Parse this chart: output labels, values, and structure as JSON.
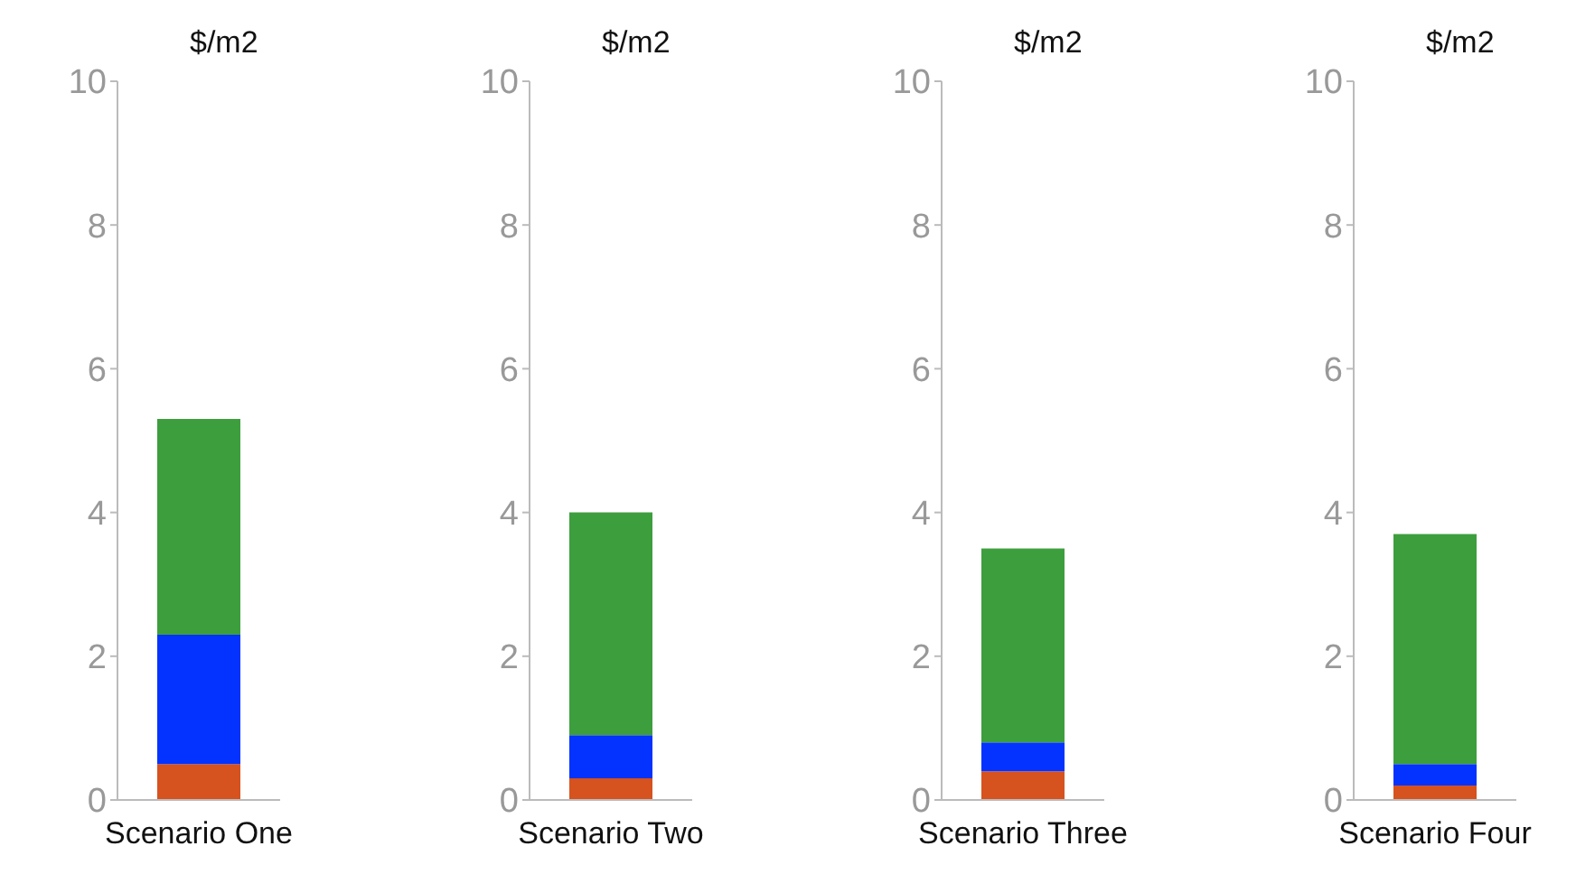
{
  "chart_data": [
    {
      "type": "bar",
      "stacked": true,
      "categories": [
        "Scenario One"
      ],
      "ylabel": "$/m2",
      "ylim": [
        0,
        10
      ],
      "yticks": [
        0,
        2,
        4,
        6,
        8,
        10
      ],
      "series": [
        {
          "color": "#d6521e",
          "values": [
            0.5
          ]
        },
        {
          "color": "#0433ff",
          "values": [
            1.8
          ]
        },
        {
          "color": "#3d9e3d",
          "values": [
            3.0
          ]
        }
      ]
    },
    {
      "type": "bar",
      "stacked": true,
      "categories": [
        "Scenario Two"
      ],
      "ylabel": "$/m2",
      "ylim": [
        0,
        10
      ],
      "yticks": [
        0,
        2,
        4,
        6,
        8,
        10
      ],
      "series": [
        {
          "color": "#d6521e",
          "values": [
            0.3
          ]
        },
        {
          "color": "#0433ff",
          "values": [
            0.6
          ]
        },
        {
          "color": "#3d9e3d",
          "values": [
            3.1
          ]
        }
      ]
    },
    {
      "type": "bar",
      "stacked": true,
      "categories": [
        "Scenario Three"
      ],
      "ylabel": "$/m2",
      "ylim": [
        0,
        10
      ],
      "yticks": [
        0,
        2,
        4,
        6,
        8,
        10
      ],
      "series": [
        {
          "color": "#d6521e",
          "values": [
            0.4
          ]
        },
        {
          "color": "#0433ff",
          "values": [
            0.4
          ]
        },
        {
          "color": "#3d9e3d",
          "values": [
            2.7
          ]
        }
      ]
    },
    {
      "type": "bar",
      "stacked": true,
      "categories": [
        "Scenario Four"
      ],
      "ylabel": "$/m2",
      "ylim": [
        0,
        10
      ],
      "yticks": [
        0,
        2,
        4,
        6,
        8,
        10
      ],
      "series": [
        {
          "color": "#d6521e",
          "values": [
            0.2
          ]
        },
        {
          "color": "#0433ff",
          "values": [
            0.3
          ]
        },
        {
          "color": "#3d9e3d",
          "values": [
            3.2
          ]
        }
      ]
    }
  ]
}
